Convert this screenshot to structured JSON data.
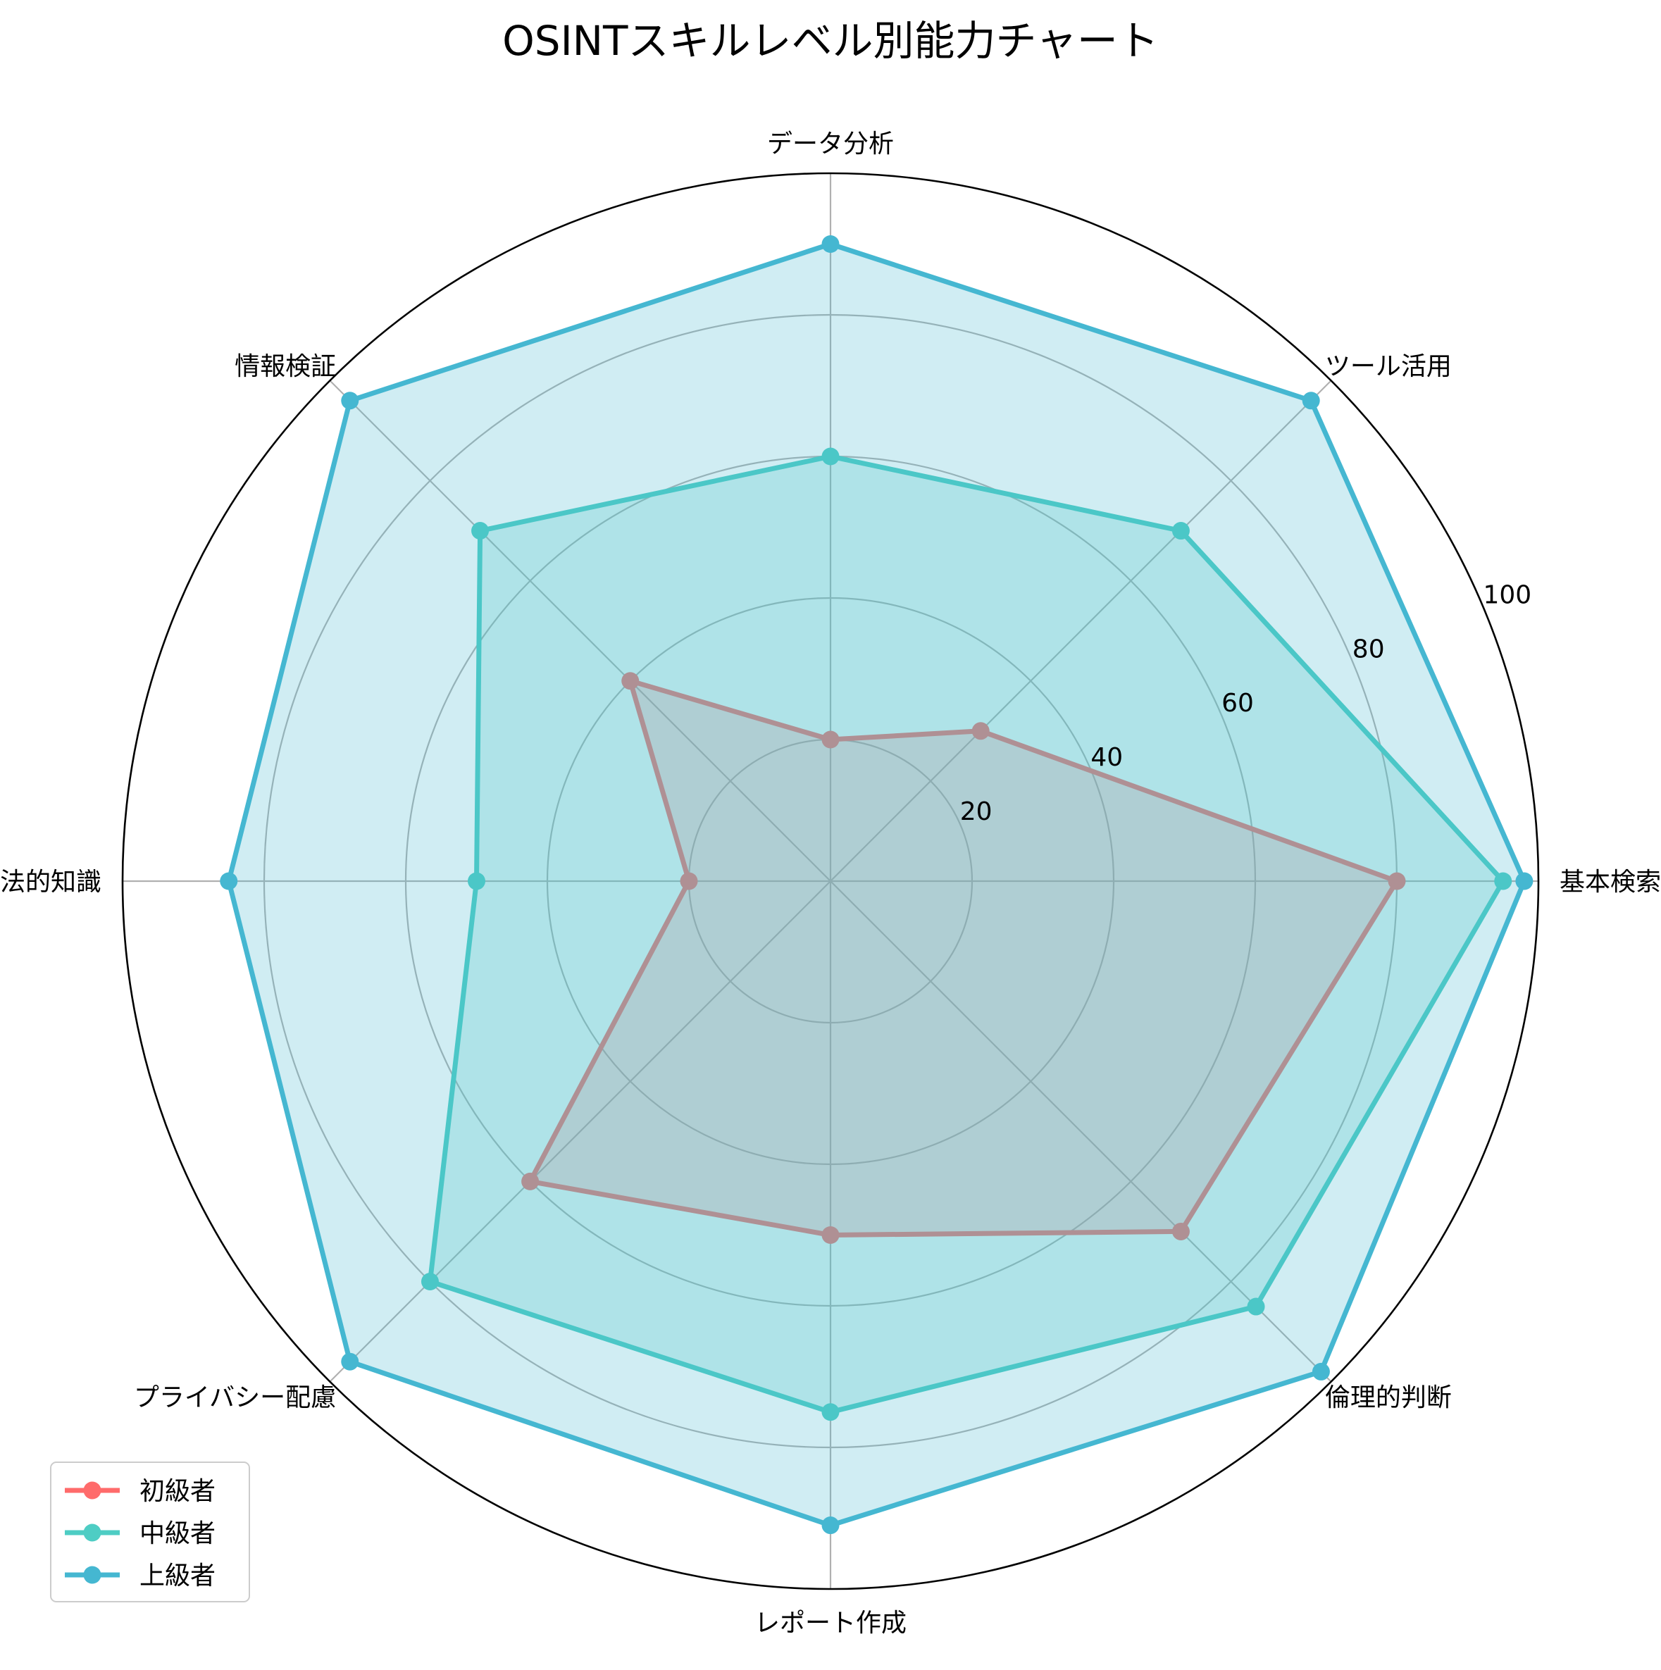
{
  "chart_data": {
    "type": "radar",
    "title": "OSINTスキルレベル別能力チャート",
    "categories": [
      "基本検索",
      "ツール活用",
      "データ分析",
      "情報検証",
      "法的知識",
      "プライバシー配慮",
      "レポート作成",
      "倫理的判断"
    ],
    "rlim": [
      0,
      100
    ],
    "rticks": [
      20,
      40,
      60,
      80,
      100
    ],
    "rtick_labels": [
      "20",
      "40",
      "60",
      "80",
      "100"
    ],
    "grid": true,
    "legend_position": "bottom-left",
    "series": [
      {
        "name": "初級者",
        "color": "#ff6b6b",
        "fill_opacity": 0.25,
        "values": [
          80,
          30,
          20,
          40,
          20,
          60,
          50,
          70
        ]
      },
      {
        "name": "中級者",
        "color": "#4ecdc4",
        "fill_opacity": 0.25,
        "values": [
          95,
          70,
          60,
          70,
          50,
          80,
          75,
          85
        ]
      },
      {
        "name": "上級者",
        "color": "#45b7d1",
        "fill_opacity": 0.25,
        "values": [
          98,
          96,
          90,
          96,
          85,
          96,
          91,
          98
        ]
      }
    ]
  }
}
